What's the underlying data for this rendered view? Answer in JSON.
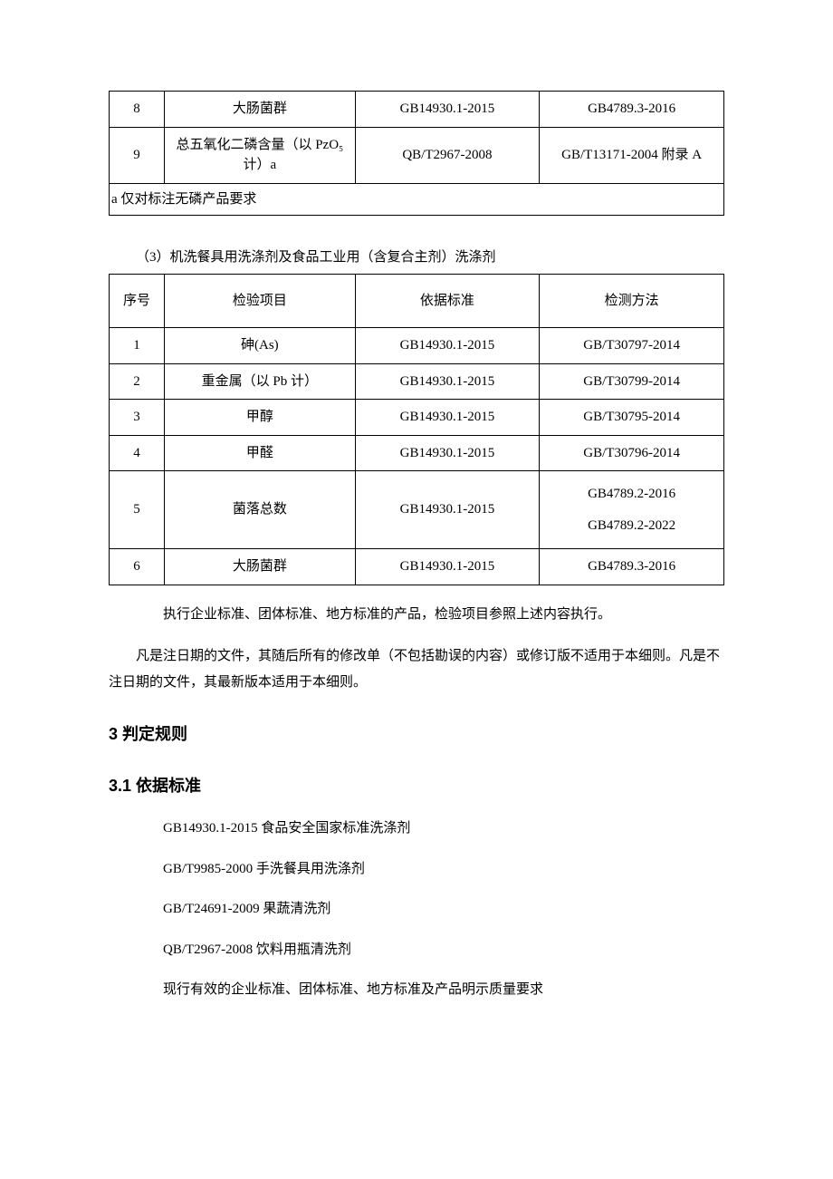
{
  "table1": {
    "rows": [
      {
        "seq": "8",
        "item": "大肠菌群",
        "std": "GB14930.1-2015",
        "method": "GB4789.3-2016"
      },
      {
        "seq": "9",
        "item": "总五氧化二磷含量（以 PzO₅ 计）a",
        "std": "QB/T2967-2008",
        "method": "GB/T13171-2004 附录 A"
      }
    ],
    "footnote": "a 仅对标注无磷产品要求"
  },
  "section3_label": "（3）机洗餐具用洗涤剂及食品工业用（含复合主剂）洗涤剂",
  "table2": {
    "headers": {
      "seq": "序号",
      "item": "检验项目",
      "std": "依据标准",
      "method": "检测方法"
    },
    "rows": [
      {
        "seq": "1",
        "item": "砷(As)",
        "std": "GB14930.1-2015",
        "method": "GB/T30797-2014"
      },
      {
        "seq": "2",
        "item": "重金属（以 Pb 计）",
        "std": "GB14930.1-2015",
        "method": "GB/T30799-2014"
      },
      {
        "seq": "3",
        "item": "甲醇",
        "std": "GB14930.1-2015",
        "method": "GB/T30795-2014"
      },
      {
        "seq": "4",
        "item": "甲醛",
        "std": "GB14930.1-2015",
        "method": "GB/T30796-2014"
      },
      {
        "seq": "5",
        "item": "菌落总数",
        "std": "GB14930.1-2015",
        "method1": "GB4789.2-2016",
        "method2": "GB4789.2-2022"
      },
      {
        "seq": "6",
        "item": "大肠菌群",
        "std": "GB14930.1-2015",
        "method": "GB4789.3-2016"
      }
    ]
  },
  "para1": "执行企业标准、团体标准、地方标准的产品，检验项目参照上述内容执行。",
  "para2": "凡是注日期的文件，其随后所有的修改单（不包括勘误的内容）或修订版不适用于本细则。凡是不注日期的文件，其最新版本适用于本细则。",
  "h3": "3 判定规则",
  "h3_1": "3.1 依据标准",
  "standards": [
    "GB14930.1-2015 食品安全国家标准洗涤剂",
    "GB/T9985-2000 手洗餐具用洗涤剂",
    "GB/T24691-2009 果蔬清洗剂",
    "QB/T2967-2008 饮料用瓶清洗剂",
    "现行有效的企业标准、团体标准、地方标准及产品明示质量要求"
  ]
}
